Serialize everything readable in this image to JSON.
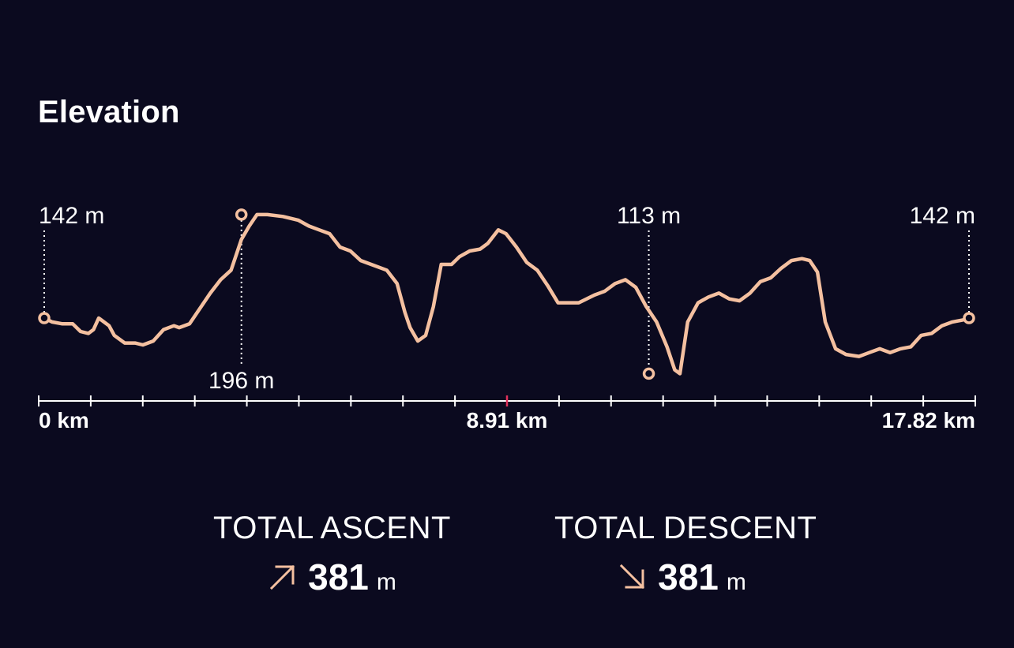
{
  "title": "Elevation",
  "colors": {
    "background": "#0b0a1f",
    "line": "#f4c0a0",
    "axis": "#ffffff",
    "midpoint_tick": "#e0305a",
    "text": "#ffffff"
  },
  "chart_data": {
    "type": "line",
    "title": "Elevation",
    "x_unit": "km",
    "y_unit": "m",
    "xlim": [
      0,
      17.82
    ],
    "ylim": [
      100,
      205
    ],
    "x_tick_labels": [
      "0 km",
      "8.91 km",
      "17.82 km"
    ],
    "x_tick_count": 19,
    "grid": false,
    "series": [
      {
        "points": [
          [
            0,
            142
          ],
          [
            0.15,
            140
          ],
          [
            0.35,
            139
          ],
          [
            0.55,
            139
          ],
          [
            0.7,
            135
          ],
          [
            0.85,
            134
          ],
          [
            0.95,
            136
          ],
          [
            1.05,
            142
          ],
          [
            1.25,
            138
          ],
          [
            1.35,
            133
          ],
          [
            1.55,
            129
          ],
          [
            1.75,
            129
          ],
          [
            1.9,
            128
          ],
          [
            2.1,
            130
          ],
          [
            2.3,
            136
          ],
          [
            2.5,
            138
          ],
          [
            2.6,
            137
          ],
          [
            2.8,
            139
          ],
          [
            3.0,
            147
          ],
          [
            3.2,
            155
          ],
          [
            3.4,
            162
          ],
          [
            3.6,
            167
          ],
          [
            3.8,
            183
          ],
          [
            3.95,
            190
          ],
          [
            4.1,
            196
          ],
          [
            4.3,
            196
          ],
          [
            4.6,
            195
          ],
          [
            4.9,
            193
          ],
          [
            5.1,
            190
          ],
          [
            5.3,
            188
          ],
          [
            5.5,
            186
          ],
          [
            5.7,
            179
          ],
          [
            5.9,
            177
          ],
          [
            6.1,
            172
          ],
          [
            6.3,
            170
          ],
          [
            6.6,
            167
          ],
          [
            6.8,
            160
          ],
          [
            6.95,
            145
          ],
          [
            7.05,
            137
          ],
          [
            7.2,
            130
          ],
          [
            7.35,
            133
          ],
          [
            7.5,
            148
          ],
          [
            7.65,
            170
          ],
          [
            7.85,
            170
          ],
          [
            8.0,
            174
          ],
          [
            8.2,
            177
          ],
          [
            8.4,
            178
          ],
          [
            8.55,
            181
          ],
          [
            8.75,
            188
          ],
          [
            8.9,
            186
          ],
          [
            9.1,
            179
          ],
          [
            9.3,
            171
          ],
          [
            9.5,
            167
          ],
          [
            9.7,
            159
          ],
          [
            9.9,
            150
          ],
          [
            10.1,
            150
          ],
          [
            10.3,
            150
          ],
          [
            10.6,
            154
          ],
          [
            10.8,
            156
          ],
          [
            11.0,
            160
          ],
          [
            11.2,
            162
          ],
          [
            11.4,
            158
          ],
          [
            11.6,
            148
          ],
          [
            11.8,
            140
          ],
          [
            12.0,
            127
          ],
          [
            12.15,
            115
          ],
          [
            12.25,
            113
          ],
          [
            12.4,
            140
          ],
          [
            12.6,
            150
          ],
          [
            12.8,
            153
          ],
          [
            13.0,
            155
          ],
          [
            13.2,
            152
          ],
          [
            13.4,
            151
          ],
          [
            13.6,
            155
          ],
          [
            13.8,
            161
          ],
          [
            14.0,
            163
          ],
          [
            14.2,
            168
          ],
          [
            14.4,
            172
          ],
          [
            14.6,
            173
          ],
          [
            14.75,
            172
          ],
          [
            14.9,
            166
          ],
          [
            15.05,
            140
          ],
          [
            15.25,
            126
          ],
          [
            15.45,
            123
          ],
          [
            15.7,
            122
          ],
          [
            15.9,
            124
          ],
          [
            16.1,
            126
          ],
          [
            16.3,
            124
          ],
          [
            16.5,
            126
          ],
          [
            16.7,
            127
          ],
          [
            16.9,
            133
          ],
          [
            17.1,
            134
          ],
          [
            17.3,
            138
          ],
          [
            17.5,
            140
          ],
          [
            17.7,
            141
          ],
          [
            17.82,
            142
          ]
        ]
      }
    ],
    "annotations": [
      {
        "x": 0,
        "y": 142,
        "label": "142 m",
        "position": "above"
      },
      {
        "x": 3.8,
        "y": 196,
        "label": "196 m",
        "position": "below"
      },
      {
        "x": 11.65,
        "y": 113,
        "label": "113 m",
        "position": "above"
      },
      {
        "x": 17.82,
        "y": 142,
        "label": "142 m",
        "position": "above"
      }
    ]
  },
  "stats": {
    "ascent_label": "TOTAL ASCENT",
    "ascent_value": "381",
    "ascent_unit": "m",
    "descent_label": "TOTAL DESCENT",
    "descent_value": "381",
    "descent_unit": "m"
  },
  "icons": {
    "ascent": "arrow-up-right-icon",
    "descent": "arrow-down-right-icon"
  }
}
